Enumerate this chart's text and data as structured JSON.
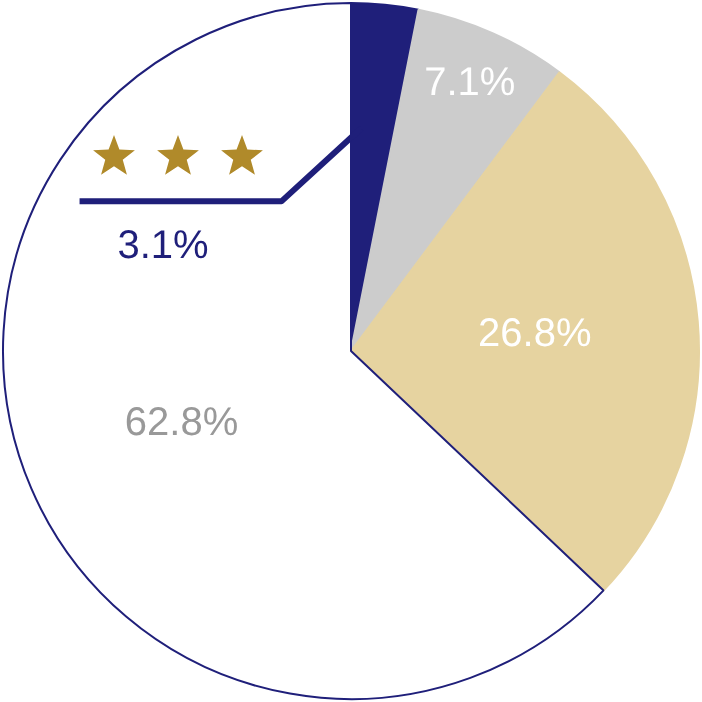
{
  "chart_data": {
    "type": "pie",
    "categories": [
      null,
      null,
      null,
      null
    ],
    "values": [
      3.1,
      7.1,
      26.8,
      62.8
    ],
    "colors": [
      "#1f1f7a",
      "#cccccc",
      "#e6d3a0",
      "#ffffff"
    ],
    "value_labels": [
      "3.1%",
      "7.1%",
      "26.8%",
      "62.8%"
    ]
  }
}
